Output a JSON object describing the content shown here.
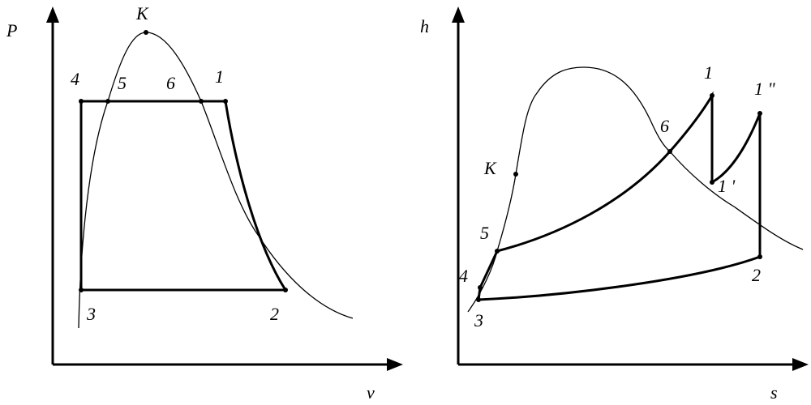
{
  "diagrams": [
    {
      "y_axis": "P",
      "x_axis": "v",
      "points": {
        "K": "K",
        "p4": "4",
        "p5": "5",
        "p6": "6",
        "p1": "1",
        "p3": "3",
        "p2": "2"
      }
    },
    {
      "y_axis": "h",
      "x_axis": "s",
      "points": {
        "p1": "1",
        "p1pp": "1 \"",
        "p6": "6",
        "K": "K",
        "p1p": "1 '",
        "p5": "5",
        "p4": "4",
        "p2": "2",
        "p3": "3"
      }
    }
  ]
}
